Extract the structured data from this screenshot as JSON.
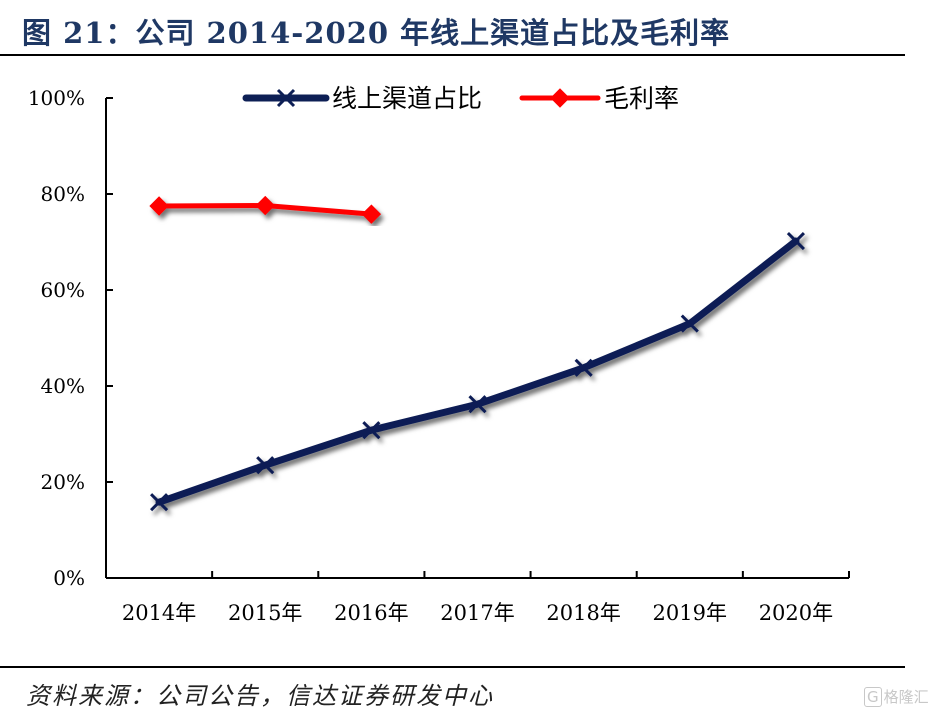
{
  "figure": {
    "title": "图 21：公司 2014-2020 年线上渠道占比及毛利率",
    "source": "资料来源：公司公告，信达证券研发中心",
    "watermark_icon": "G",
    "watermark": "格隆汇"
  },
  "chart_data": {
    "type": "line",
    "title": "",
    "xlabel": "",
    "ylabel": "",
    "categories": [
      "2014年",
      "2015年",
      "2016年",
      "2017年",
      "2018年",
      "2019年",
      "2020年"
    ],
    "ylim": [
      0,
      100
    ],
    "yticks": [
      0,
      20,
      40,
      60,
      80,
      100
    ],
    "ytick_labels": [
      "0%",
      "20%",
      "40%",
      "60%",
      "80%",
      "100%"
    ],
    "grid": false,
    "legend_position": "top",
    "series": [
      {
        "name": "线上渠道占比",
        "color": "#0d1f55",
        "marker": "cross",
        "values": [
          15.8,
          23.5,
          30.8,
          36.2,
          43.8,
          53.0,
          70.2
        ]
      },
      {
        "name": "毛利率",
        "color": "#ff0000",
        "marker": "diamond",
        "values": [
          77.5,
          77.6,
          75.8,
          null,
          null,
          null,
          null
        ]
      }
    ]
  }
}
